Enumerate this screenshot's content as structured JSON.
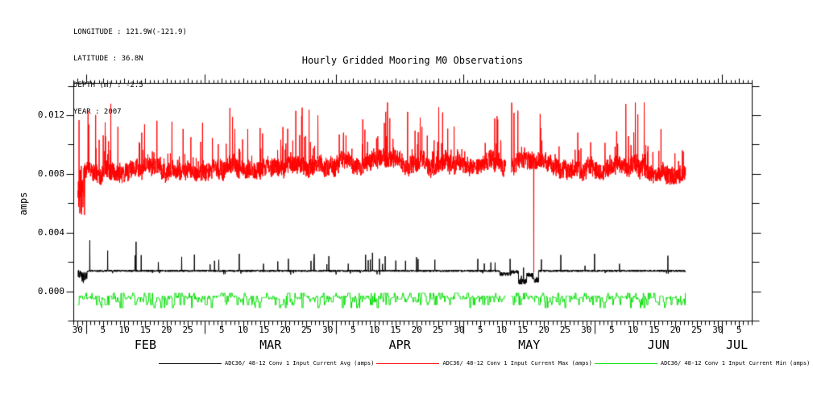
{
  "header": {
    "lines": [
      "LONGITUDE : 121.9W(-121.9)",
      "LATITUDE : 36.8N",
      "DEPTH (m) : -2.5",
      "YEAR : 2007"
    ]
  },
  "chart_data": {
    "type": "line",
    "title": "Hourly Gridded Mooring M0 Observations",
    "ylabel": "amps",
    "background": "#ffffff",
    "axis_color": "#000000",
    "ylim": [
      -0.002,
      0.0142
    ],
    "xlim_days": [
      0,
      160
    ],
    "grid": false,
    "legend_position": "bottom",
    "y_ticks": [
      {
        "label": "0.000",
        "value": 0.0
      },
      {
        "label": "0.004",
        "value": 0.004
      },
      {
        "label": "0.008",
        "value": 0.008
      },
      {
        "label": "0.012",
        "value": 0.012
      }
    ],
    "y_minor_step": 0.002,
    "day_ticks": [
      {
        "label": "30",
        "day": 1
      },
      {
        "label": "5",
        "day": 7
      },
      {
        "label": "10",
        "day": 12
      },
      {
        "label": "15",
        "day": 17
      },
      {
        "label": "20",
        "day": 22
      },
      {
        "label": "25",
        "day": 27
      },
      {
        "label": "5",
        "day": 35
      },
      {
        "label": "10",
        "day": 40
      },
      {
        "label": "15",
        "day": 45
      },
      {
        "label": "20",
        "day": 50
      },
      {
        "label": "25",
        "day": 55
      },
      {
        "label": "30",
        "day": 60
      },
      {
        "label": "5",
        "day": 66
      },
      {
        "label": "10",
        "day": 71
      },
      {
        "label": "15",
        "day": 76
      },
      {
        "label": "20",
        "day": 81
      },
      {
        "label": "25",
        "day": 86
      },
      {
        "label": "30",
        "day": 91
      },
      {
        "label": "5",
        "day": 96
      },
      {
        "label": "10",
        "day": 101
      },
      {
        "label": "15",
        "day": 106
      },
      {
        "label": "20",
        "day": 111
      },
      {
        "label": "25",
        "day": 116
      },
      {
        "label": "30",
        "day": 121
      },
      {
        "label": "5",
        "day": 127
      },
      {
        "label": "10",
        "day": 132
      },
      {
        "label": "15",
        "day": 137
      },
      {
        "label": "20",
        "day": 142
      },
      {
        "label": "25",
        "day": 147
      },
      {
        "label": "30",
        "day": 152
      },
      {
        "label": "5",
        "day": 157
      }
    ],
    "month_ticks": [
      {
        "label": "FEB",
        "start_day": 3,
        "center_day": 17
      },
      {
        "label": "MAR",
        "start_day": 31,
        "center_day": 46.5
      },
      {
        "label": "APR",
        "start_day": 62,
        "center_day": 77
      },
      {
        "label": "MAY",
        "start_day": 92,
        "center_day": 107.5
      },
      {
        "label": "JUN",
        "start_day": 123,
        "center_day": 138
      },
      {
        "label": "JUL",
        "start_day": 153,
        "center_day": 156.5
      }
    ],
    "series": [
      {
        "name": "ADC36/ 48-12 Conv 1 Input Current Avg (amps)",
        "color": "#000000",
        "role": "avg",
        "range_days": [
          1.0,
          144.3
        ],
        "baseline": 0.00142,
        "noise": 7e-05,
        "spike_prob": 0.012,
        "spike_max": 0.0009,
        "dip_prob": 0.006,
        "named_spikes": [
          [
            3.8,
            0.0035
          ],
          [
            8.0,
            0.0028
          ],
          [
            14.7,
            0.0034
          ],
          [
            110.3,
            0.0022
          ]
        ],
        "segments": [
          [
            1.0,
            1.8,
            0.00125,
            0.0003
          ],
          [
            1.8,
            3.2,
            0.00095,
            0.0004
          ],
          [
            100.5,
            103.2,
            0.0012,
            0.00012
          ],
          [
            103.2,
            104.9,
            0.00135,
            0.00012
          ],
          [
            104.9,
            106.8,
            0.0007,
            0.0002
          ],
          [
            106.8,
            108.4,
            0.00115,
            0.00015
          ],
          [
            108.4,
            109.6,
            0.0008,
            0.0002
          ]
        ],
        "gaps": []
      },
      {
        "name": "ADC36/ 48-12 Conv 1 Input Current Max (amps)",
        "color": "#ff0000",
        "role": "max",
        "range_days": [
          1.0,
          144.3
        ],
        "baseline": 0.0081,
        "hump_amp": 0.0006,
        "noise": 0.0012,
        "walk": 0.0004,
        "spike_prob": 0.06,
        "spike_max": 0.004,
        "spike_boost_days": [
          68,
          88
        ],
        "clip_max": 0.0129,
        "named_spikes": [
          [
            1.25,
            0.0117
          ],
          [
            108.5,
            0.0013
          ]
        ],
        "segments": [
          [
            1.0,
            2.6,
            0.0069,
            0.0018
          ]
        ],
        "gaps": [
          [
            101.9,
            103.2
          ]
        ]
      },
      {
        "name": "ADC36/ 48-12 Conv 1 Input Current Min (amps)",
        "color": "#00dd00",
        "role": "min",
        "range_days": [
          1.0,
          144.3
        ],
        "levels": [
          -0.0001,
          -0.0003,
          -0.0004,
          -0.0005,
          -0.0007,
          -0.0009,
          -0.0011
        ],
        "level_weights": [
          0.1,
          0.25,
          0.2,
          0.2,
          0.12,
          0.08,
          0.05
        ],
        "hold_hours": [
          2,
          9
        ],
        "gaps": [
          [
            101.9,
            103.2
          ]
        ]
      }
    ]
  }
}
